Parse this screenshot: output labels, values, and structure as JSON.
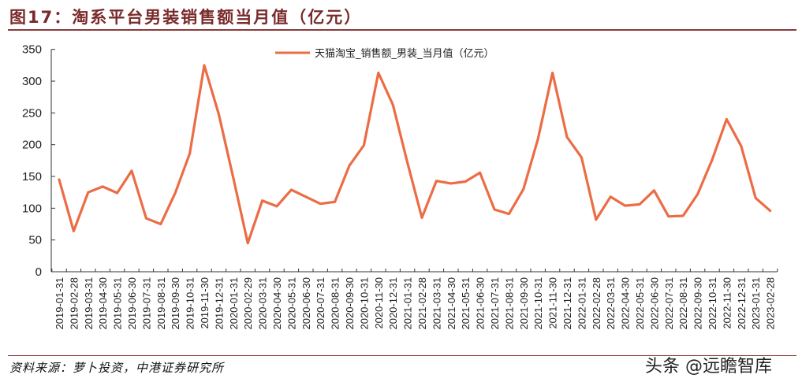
{
  "figure": {
    "title": "图17：淘系平台男装销售额当月值（亿元）",
    "source": "资料来源：萝卜投资，中港证券研究所",
    "watermark": "头条 @远瞻智库",
    "line_color": "#ec6c45",
    "title_color": "#7a2a2a"
  },
  "chart_data": {
    "type": "line",
    "title": "淘系平台男装销售额当月值（亿元）",
    "xlabel": "",
    "ylabel": "",
    "ylim": [
      0,
      350
    ],
    "yticks": [
      0,
      50,
      100,
      150,
      200,
      250,
      300,
      350
    ],
    "grid": false,
    "legend_position": "top-center",
    "x": [
      "2019-01-31",
      "2019-02-28",
      "2019-03-31",
      "2019-04-30",
      "2019-05-31",
      "2019-06-30",
      "2019-07-31",
      "2019-08-31",
      "2019-09-30",
      "2019-10-31",
      "2019-11-30",
      "2019-12-31",
      "2020-01-31",
      "2020-02-29",
      "2020-03-31",
      "2020-04-30",
      "2020-05-31",
      "2020-06-30",
      "2020-07-31",
      "2020-08-31",
      "2020-09-30",
      "2020-10-31",
      "2020-11-30",
      "2020-12-31",
      "2021-01-31",
      "2021-02-28",
      "2021-03-31",
      "2021-04-30",
      "2021-05-31",
      "2021-06-30",
      "2021-07-31",
      "2021-08-31",
      "2021-09-30",
      "2021-10-31",
      "2021-11-30",
      "2021-12-31",
      "2022-01-31",
      "2022-02-28",
      "2022-03-31",
      "2022-04-30",
      "2022-05-31",
      "2022-06-30",
      "2022-07-31",
      "2022-08-31",
      "2022-09-30",
      "2022-10-31",
      "2022-11-30",
      "2022-12-31",
      "2023-01-31",
      "2023-02-28"
    ],
    "series": [
      {
        "name": "天猫淘宝_销售额_男装_当月值（亿元）",
        "values": [
          145,
          64,
          125,
          134,
          124,
          159,
          84,
          75,
          124,
          186,
          325,
          248,
          148,
          45,
          112,
          103,
          129,
          118,
          107,
          110,
          167,
          199,
          313,
          263,
          172,
          85,
          143,
          139,
          142,
          156,
          98,
          91,
          130,
          209,
          313,
          212,
          180,
          82,
          118,
          104,
          106,
          128,
          87,
          88,
          122,
          176,
          240,
          198,
          116,
          96
        ]
      }
    ]
  }
}
